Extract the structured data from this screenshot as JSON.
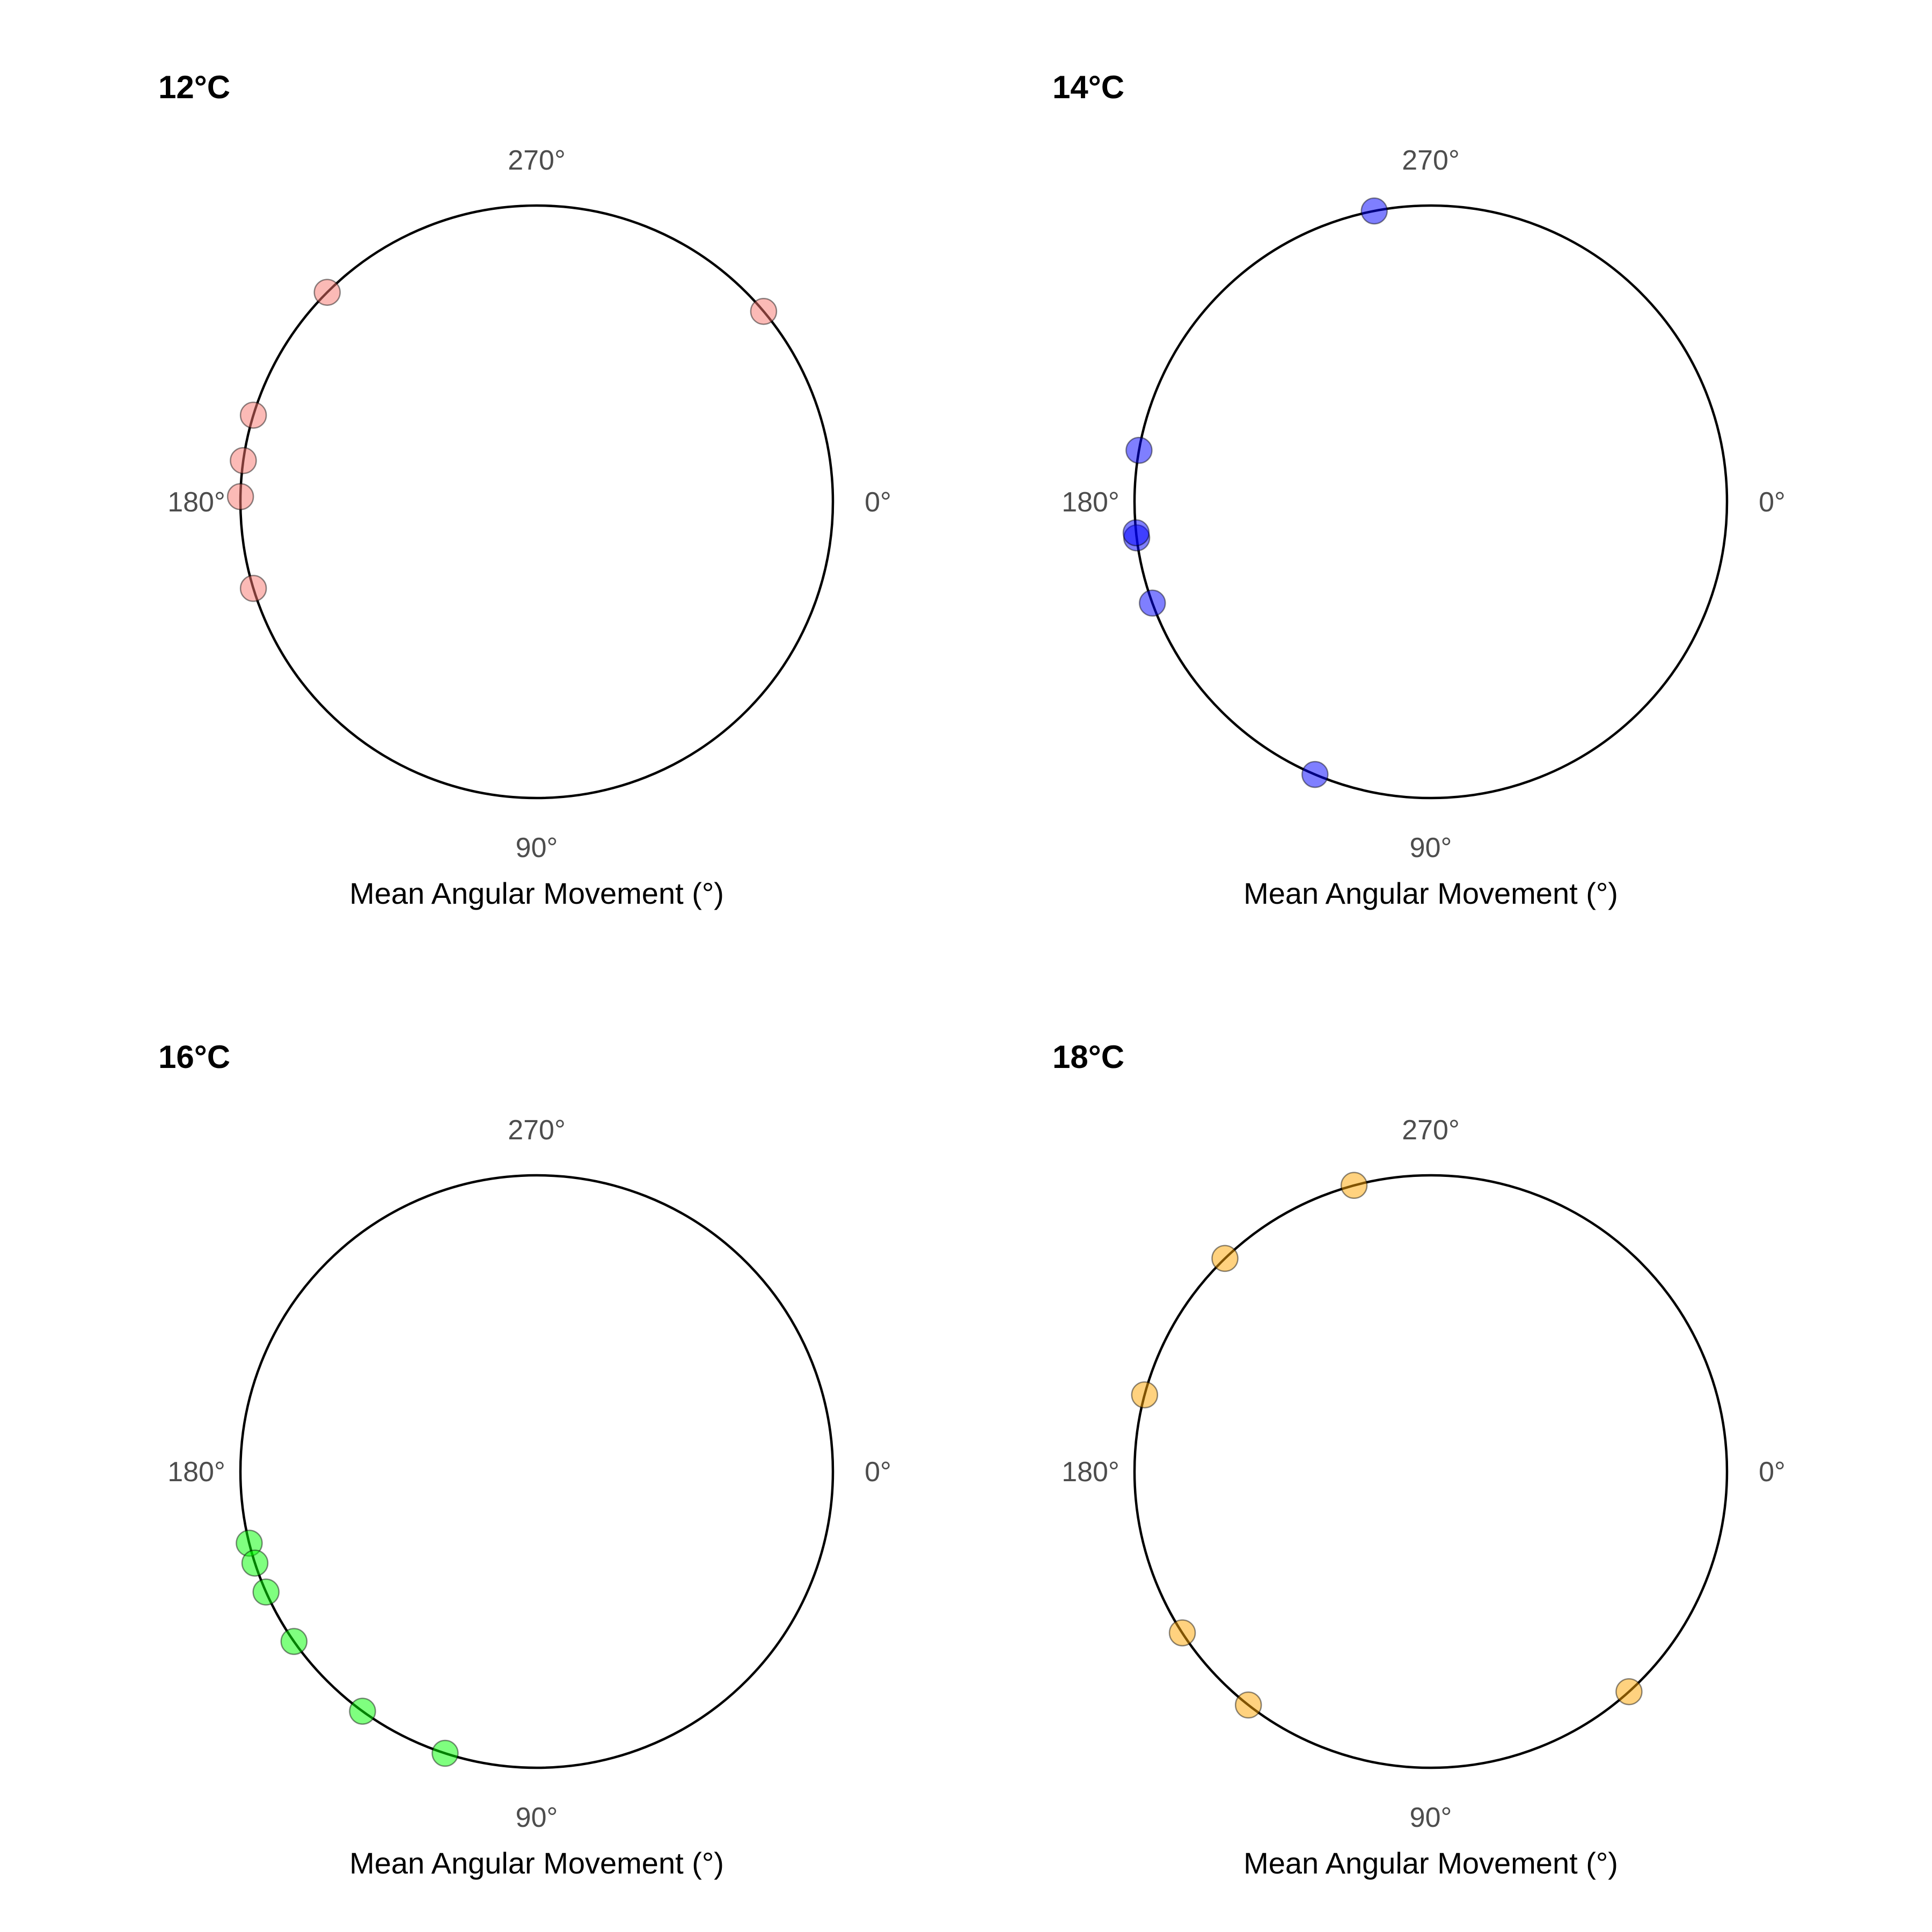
{
  "chart_data": [
    {
      "type": "scatter",
      "coord": "polar",
      "title": "12°C",
      "xlabel": "Mean Angular Movement (°)",
      "angle_ticks": [
        "0°",
        "90°",
        "180°",
        "270°"
      ],
      "color": "#f8766d",
      "series": [
        {
          "values_deg": [
            320,
            225,
            197,
            188,
            181,
            163
          ]
        }
      ]
    },
    {
      "type": "scatter",
      "coord": "polar",
      "title": "14°C",
      "xlabel": "Mean Angular Movement (°)",
      "angle_ticks": [
        "0°",
        "90°",
        "180°",
        "270°"
      ],
      "color": "#0000ff",
      "series": [
        {
          "values_deg": [
            259,
            190,
            173,
            174,
            160,
            113
          ]
        }
      ]
    },
    {
      "type": "scatter",
      "coord": "polar",
      "title": "16°C",
      "xlabel": "Mean Angular Movement (°)",
      "angle_ticks": [
        "0°",
        "90°",
        "180°",
        "270°"
      ],
      "color": "#00ff00",
      "series": [
        {
          "values_deg": [
            166,
            162,
            156,
            145,
            126,
            108
          ]
        }
      ]
    },
    {
      "type": "scatter",
      "coord": "polar",
      "title": "18°C",
      "xlabel": "Mean Angular Movement (°)",
      "angle_ticks": [
        "0°",
        "90°",
        "180°",
        "270°"
      ],
      "color": "#ffa500",
      "series": [
        {
          "values_deg": [
            255,
            226,
            195,
            147,
            128,
            48
          ]
        }
      ]
    }
  ]
}
